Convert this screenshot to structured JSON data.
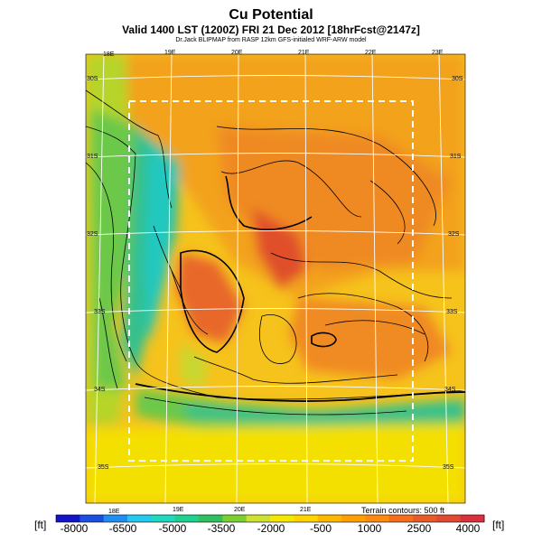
{
  "header": {
    "title": "Cu Potential",
    "subtitle": "Valid 1400 LST (1200Z) FRI 21 Dec 2012 [18hrFcst@2147z]",
    "credit": "Dr.Jack BLIPMAP from RASP 12km GFS-initialed WRF-ARW model"
  },
  "map": {
    "lon_labels_top": [
      "18E",
      "19E",
      "20E",
      "21E",
      "22E",
      "23E"
    ],
    "lon_labels_bottom": [
      "18E",
      "19E",
      "20E",
      "21E"
    ],
    "lat_labels_left": [
      "30S",
      "31S",
      "32S",
      "33S",
      "34S",
      "35S"
    ],
    "lat_labels_right": [
      "30S",
      "31S",
      "32S",
      "33S",
      "34S",
      "35S"
    ],
    "terrain_note": "Terrain contours: 500 ft"
  },
  "colorbar": {
    "unit_left": "[ft]",
    "unit_right": "[ft]",
    "tick_labels": [
      "-8000",
      "-6500",
      "-5000",
      "-3500",
      "-2000",
      "-500",
      "1000",
      "2500",
      "4000"
    ],
    "colors": [
      "#1414c8",
      "#1c4ee0",
      "#1e8ef0",
      "#22c8ee",
      "#20d8c0",
      "#20d090",
      "#30c060",
      "#7ad030",
      "#cee030",
      "#f4e800",
      "#ffd400",
      "#ffb800",
      "#ffa000",
      "#ff8a10",
      "#f46e1e",
      "#e85a28",
      "#e04a32",
      "#d8303c"
    ]
  }
}
